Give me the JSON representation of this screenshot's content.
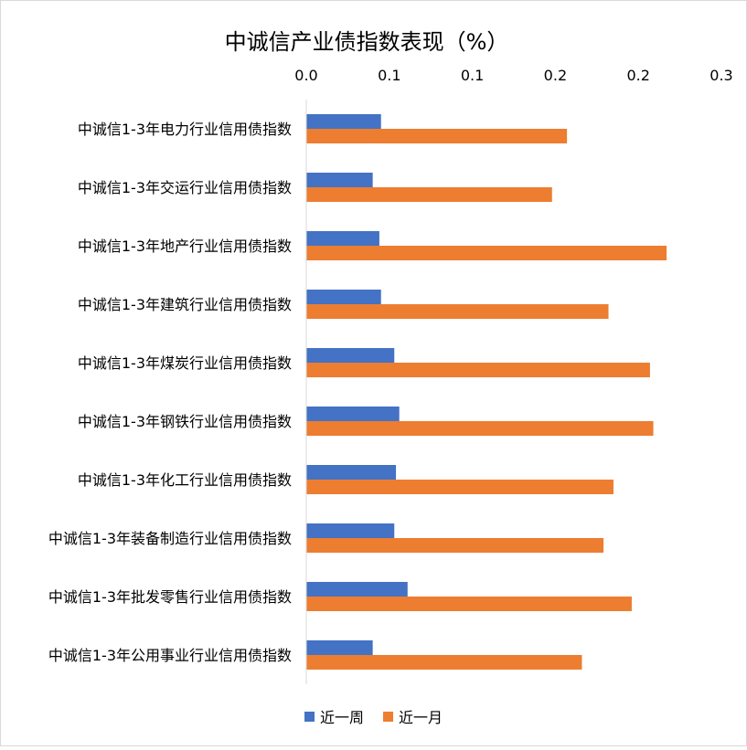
{
  "chart_data": {
    "type": "bar",
    "orientation": "horizontal",
    "title": "中诚信产业债指数表现（%）",
    "xlabel": "",
    "ylabel": "",
    "xlim": [
      0,
      0.25
    ],
    "x_axis_position": "top",
    "tick_values": [
      0,
      0.05,
      0.1,
      0.15,
      0.2,
      0.25
    ],
    "tick_labels": [
      "0.0",
      "0.1",
      "0.1",
      "0.2",
      "0.2",
      "0.3"
    ],
    "grid": false,
    "legend_position": "bottom",
    "categories": [
      "中诚信1-3年电力行业信用债指数",
      "中诚信1-3年交运行业信用债指数",
      "中诚信1-3年地产行业信用债指数",
      "中诚信1-3年建筑行业信用债指数",
      "中诚信1-3年煤炭行业信用债指数",
      "中诚信1-3年钢铁行业信用债指数",
      "中诚信1-3年化工行业信用债指数",
      "中诚信1-3年装备制造行业信用债指数",
      "中诚信1-3年批发零售行业信用债指数",
      "中诚信1-3年公用事业行业信用债指数"
    ],
    "series": [
      {
        "name": "近一周",
        "color": "#4472c4",
        "values": [
          0.045,
          0.04,
          0.044,
          0.045,
          0.053,
          0.056,
          0.054,
          0.053,
          0.061,
          0.04
        ]
      },
      {
        "name": "近一月",
        "color": "#ed7d31",
        "values": [
          0.157,
          0.148,
          0.217,
          0.182,
          0.207,
          0.209,
          0.185,
          0.179,
          0.196,
          0.166
        ]
      }
    ]
  }
}
